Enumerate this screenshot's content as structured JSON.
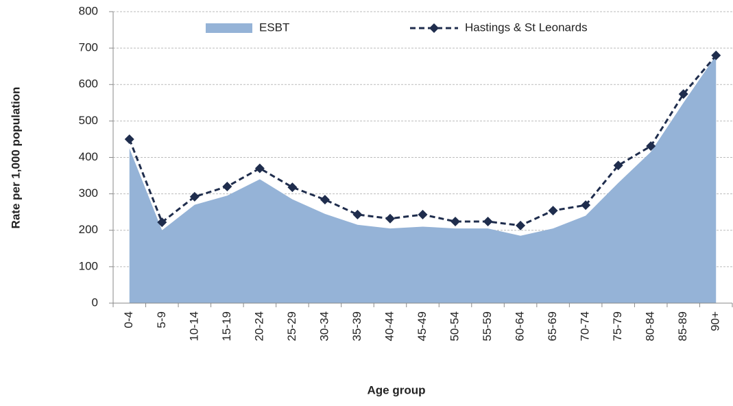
{
  "chart_data": {
    "type": "area_line",
    "x_label": "Age group",
    "y_label": "Rate per 1,000 population",
    "categories": [
      "0-4",
      "5-9",
      "10-14",
      "15-19",
      "20-24",
      "25-29",
      "30-34",
      "35-39",
      "40-44",
      "45-49",
      "50-54",
      "55-59",
      "60-64",
      "65-69",
      "70-74",
      "75-79",
      "80-84",
      "85-89",
      "90+"
    ],
    "series": [
      {
        "name": "ESBT",
        "color": "#95b3d7",
        "values": [
          425,
          200,
          270,
          295,
          340,
          285,
          245,
          215,
          205,
          210,
          205,
          205,
          185,
          205,
          240,
          330,
          415,
          550,
          680
        ]
      },
      {
        "name": "Hastings & St Leonards",
        "color": "#1f2d4d",
        "values": [
          450,
          222,
          292,
          320,
          370,
          318,
          284,
          243,
          232,
          243,
          224,
          224,
          213,
          254,
          269,
          378,
          431,
          574,
          680
        ]
      }
    ],
    "ylim": [
      0,
      800
    ],
    "yticks": [
      0,
      100,
      200,
      300,
      400,
      500,
      600,
      700,
      800
    ],
    "grid": true
  }
}
